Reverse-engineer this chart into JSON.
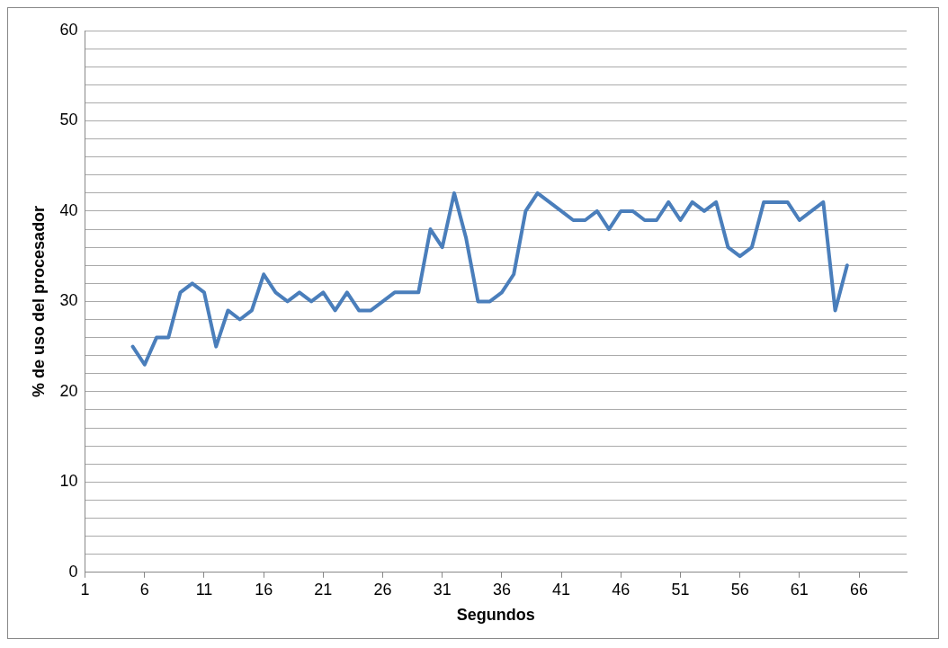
{
  "chart_data": {
    "type": "line",
    "xlabel": "Segundos",
    "ylabel": "% de uso del procesador",
    "x": [
      5,
      6,
      7,
      8,
      9,
      10,
      11,
      12,
      13,
      14,
      15,
      16,
      17,
      18,
      19,
      20,
      21,
      22,
      23,
      24,
      25,
      26,
      27,
      28,
      29,
      30,
      31,
      32,
      33,
      34,
      35,
      36,
      37,
      38,
      39,
      40,
      41,
      42,
      43,
      44,
      45,
      46,
      47,
      48,
      49,
      50,
      51,
      52,
      53,
      54,
      55,
      56,
      57,
      58,
      59,
      60,
      61,
      62,
      63,
      64,
      65
    ],
    "series": [
      {
        "color": "#4a7ebb",
        "values": [
          25,
          23,
          26,
          26,
          31,
          32,
          31,
          25,
          29,
          28,
          29,
          33,
          31,
          30,
          31,
          30,
          31,
          29,
          31,
          29,
          29,
          30,
          31,
          31,
          31,
          38,
          36,
          42,
          37,
          30,
          30,
          31,
          33,
          40,
          42,
          41,
          40,
          39,
          39,
          40,
          38,
          40,
          40,
          39,
          39,
          41,
          39,
          41,
          40,
          41,
          36,
          35,
          36,
          41,
          41,
          41,
          39,
          40,
          41,
          29,
          34
        ]
      }
    ],
    "xlim": [
      1,
      70
    ],
    "xticks": [
      1,
      6,
      11,
      16,
      21,
      26,
      31,
      36,
      41,
      46,
      51,
      56,
      61,
      66
    ],
    "ylim": [
      0,
      60
    ],
    "yticks": [
      0,
      {
        "value": 2,
        "label": null
      },
      {
        "value": 4,
        "label": null
      },
      {
        "value": 6,
        "label": null
      },
      {
        "value": 8,
        "label": null
      },
      10,
      {
        "value": 12,
        "label": null
      },
      {
        "value": 14,
        "label": null
      },
      {
        "value": 16,
        "label": null
      },
      {
        "value": 18,
        "label": null
      },
      20,
      {
        "value": 22,
        "label": null
      },
      {
        "value": 24,
        "label": null
      },
      {
        "value": 26,
        "label": null
      },
      {
        "value": 28,
        "label": null
      },
      30,
      {
        "value": 32,
        "label": null
      },
      {
        "value": 34,
        "label": null
      },
      {
        "value": 36,
        "label": null
      },
      {
        "value": 38,
        "label": null
      },
      40,
      {
        "value": 42,
        "label": null
      },
      {
        "value": 44,
        "label": null
      },
      {
        "value": 46,
        "label": null
      },
      {
        "value": 48,
        "label": null
      },
      50,
      {
        "value": 52,
        "label": null
      },
      {
        "value": 54,
        "label": null
      },
      {
        "value": 56,
        "label": null
      },
      {
        "value": 58,
        "label": null
      },
      60
    ],
    "grid": "y",
    "legend": false,
    "marker": "none",
    "line_style": "solid"
  }
}
